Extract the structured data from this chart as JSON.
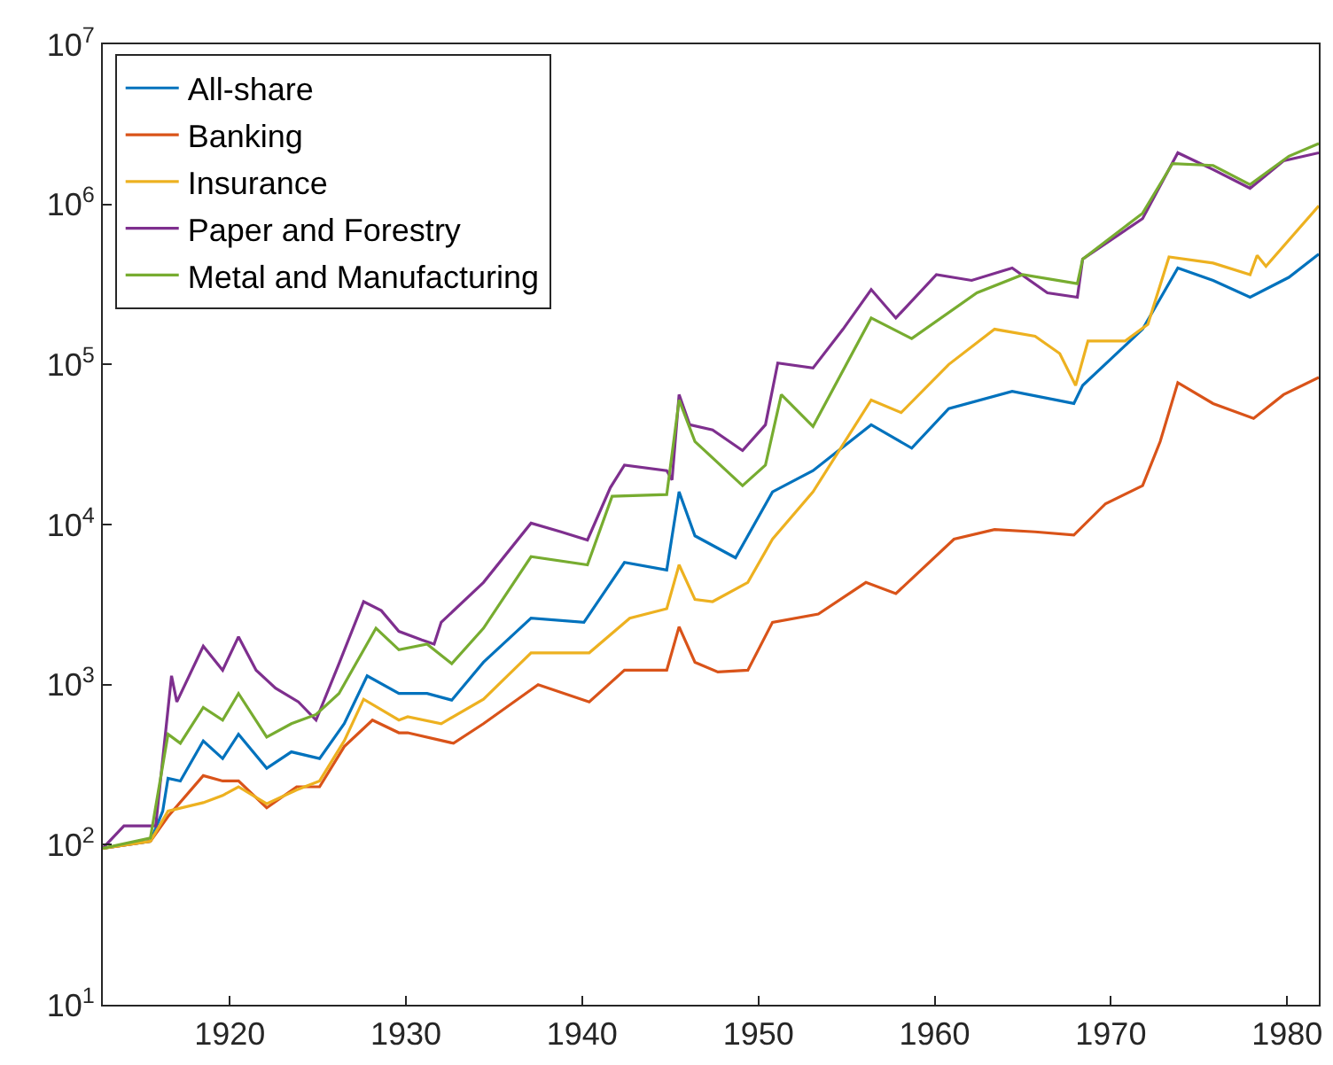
{
  "chart_data": {
    "type": "line",
    "xlim": [
      1912.8,
      1981.8
    ],
    "ylim": [
      10,
      10000000
    ],
    "log": "y",
    "legend": "top left",
    "line_style": "solid",
    "marker": "none",
    "xticks": [
      1920,
      1930,
      1940,
      1950,
      1960,
      1970,
      1980
    ],
    "yticks": [
      {
        "value": 10,
        "label": "10$^{1}$"
      },
      {
        "value": 100,
        "label": "10$^{2}$"
      },
      {
        "value": 1000,
        "label": "10$^{3}$"
      },
      {
        "value": 10000,
        "label": "10$^{4}$"
      },
      {
        "value": 100000,
        "label": "10$^{5}$"
      },
      {
        "value": 1000000,
        "label": "10$^{6}$"
      },
      {
        "value": 10000000,
        "label": "10$^{7}$"
      }
    ],
    "series": [
      {
        "name": "All-share",
        "color": "#0072bd",
        "x": [
          1912.8,
          1915.5,
          1916.2,
          1916.5,
          1917.2,
          1918.5,
          1919.6,
          1920.5,
          1922.1,
          1923.5,
          1925.1,
          1926.5,
          1927.8,
          1929.6,
          1931.2,
          1932.6,
          1934.4,
          1937.1,
          1940.1,
          1942.4,
          1944.8,
          1945.5,
          1946.4,
          1948.7,
          1950.8,
          1953.1,
          1956.4,
          1958.7,
          1960.8,
          1964.4,
          1967.9,
          1968.4,
          1971.8,
          1973.8,
          1975.8,
          1977.9,
          1980.1,
          1981.8
        ],
        "values": [
          95,
          105,
          162,
          260,
          250,
          445,
          345,
          490,
          300,
          380,
          345,
          570,
          1135,
          880,
          880,
          800,
          1380,
          2600,
          2450,
          5800,
          5200,
          16000,
          8500,
          6200,
          16000,
          21700,
          42000,
          30000,
          53000,
          68000,
          57000,
          74000,
          166000,
          400000,
          335000,
          263000,
          350000,
          490000
        ]
      },
      {
        "name": "Banking",
        "color": "#d95319",
        "x": [
          1912.8,
          1915.5,
          1916.5,
          1918.5,
          1919.6,
          1920.5,
          1922.1,
          1923.8,
          1925.1,
          1926.5,
          1928.1,
          1929.6,
          1930.1,
          1932.7,
          1934.4,
          1937.5,
          1940.4,
          1942.4,
          1944.8,
          1945.5,
          1946.4,
          1947.7,
          1949.4,
          1950.8,
          1953.4,
          1956.1,
          1957.8,
          1961.1,
          1963.4,
          1965.7,
          1967.9,
          1969.7,
          1971.8,
          1972.8,
          1973.8,
          1975.8,
          1978.1,
          1979.8,
          1981.8
        ],
        "values": [
          95,
          105,
          150,
          270,
          250,
          250,
          170,
          230,
          230,
          410,
          600,
          500,
          500,
          430,
          570,
          1000,
          780,
          1230,
          1230,
          2300,
          1380,
          1200,
          1230,
          2450,
          2760,
          4350,
          3700,
          8100,
          9300,
          9000,
          8600,
          13500,
          17500,
          33000,
          77000,
          57000,
          46000,
          64800,
          83000
        ]
      },
      {
        "name": "Insurance",
        "color": "#edb120",
        "x": [
          1912.8,
          1915.5,
          1916.5,
          1918.5,
          1919.6,
          1920.5,
          1922.1,
          1923.8,
          1925.1,
          1926.5,
          1927.6,
          1929.6,
          1930.1,
          1932.0,
          1934.4,
          1937.1,
          1940.4,
          1942.7,
          1944.8,
          1945.5,
          1946.4,
          1947.4,
          1949.4,
          1950.8,
          1953.1,
          1956.4,
          1958.1,
          1960.8,
          1963.4,
          1965.7,
          1967.1,
          1968.0,
          1968.7,
          1970.8,
          1972.1,
          1973.3,
          1975.8,
          1977.9,
          1978.3,
          1978.8,
          1981.8
        ],
        "values": [
          95,
          105,
          162,
          183,
          203,
          230,
          180,
          220,
          250,
          445,
          810,
          600,
          630,
          570,
          810,
          1580,
          1580,
          2600,
          2980,
          5600,
          3400,
          3300,
          4350,
          8100,
          16000,
          60000,
          50000,
          100000,
          166000,
          150000,
          117000,
          74000,
          140000,
          140000,
          178000,
          470000,
          430000,
          364000,
          480000,
          410000,
          980000
        ]
      },
      {
        "name": "Paper and Forestry",
        "color": "#7e2f8e",
        "x": [
          1912.8,
          1914.0,
          1915.8,
          1916.7,
          1917.0,
          1918.5,
          1919.6,
          1920.5,
          1921.5,
          1922.6,
          1923.9,
          1924.9,
          1926.2,
          1927.6,
          1928.6,
          1929.6,
          1930.9,
          1931.6,
          1932.0,
          1934.4,
          1937.1,
          1938.8,
          1940.3,
          1941.6,
          1942.4,
          1944.8,
          1945.1,
          1945.5,
          1946.1,
          1947.4,
          1949.1,
          1950.4,
          1951.1,
          1953.1,
          1954.8,
          1956.4,
          1957.8,
          1960.1,
          1962.1,
          1964.4,
          1966.4,
          1968.1,
          1968.4,
          1971.8,
          1973.8,
          1975.8,
          1977.9,
          1979.8,
          1981.8
        ],
        "values": [
          95,
          131,
          131,
          1135,
          780,
          1740,
          1230,
          1990,
          1230,
          950,
          780,
          600,
          1350,
          3300,
          2900,
          2150,
          1900,
          1790,
          2450,
          4350,
          10200,
          9000,
          8000,
          17000,
          23500,
          21700,
          19000,
          64800,
          42000,
          39000,
          29000,
          42000,
          102000,
          95000,
          166000,
          294000,
          195000,
          364000,
          335000,
          400000,
          280000,
          263000,
          455000,
          815000,
          2100000,
          1650000,
          1260000,
          1870000,
          2100000
        ]
      },
      {
        "name": "Metal and Manufacturing",
        "color": "#77ac30",
        "x": [
          1912.8,
          1915.5,
          1916.5,
          1917.2,
          1918.5,
          1919.6,
          1920.5,
          1922.1,
          1923.5,
          1924.9,
          1926.2,
          1928.3,
          1929.6,
          1931.2,
          1932.6,
          1934.4,
          1937.1,
          1940.3,
          1941.7,
          1944.8,
          1945.5,
          1946.4,
          1949.1,
          1950.4,
          1951.3,
          1953.1,
          1956.4,
          1958.7,
          1962.4,
          1965.0,
          1968.1,
          1968.4,
          1971.8,
          1973.5,
          1975.8,
          1977.9,
          1980.1,
          1981.8
        ],
        "values": [
          95,
          110,
          490,
          430,
          720,
          600,
          880,
          470,
          570,
          650,
          880,
          2250,
          1650,
          1790,
          1350,
          2250,
          6300,
          5600,
          15000,
          15400,
          60000,
          33000,
          17500,
          23500,
          64800,
          41000,
          195000,
          145000,
          280000,
          364000,
          320000,
          455000,
          880000,
          1800000,
          1750000,
          1330000,
          2000000,
          2400000
        ]
      }
    ]
  }
}
